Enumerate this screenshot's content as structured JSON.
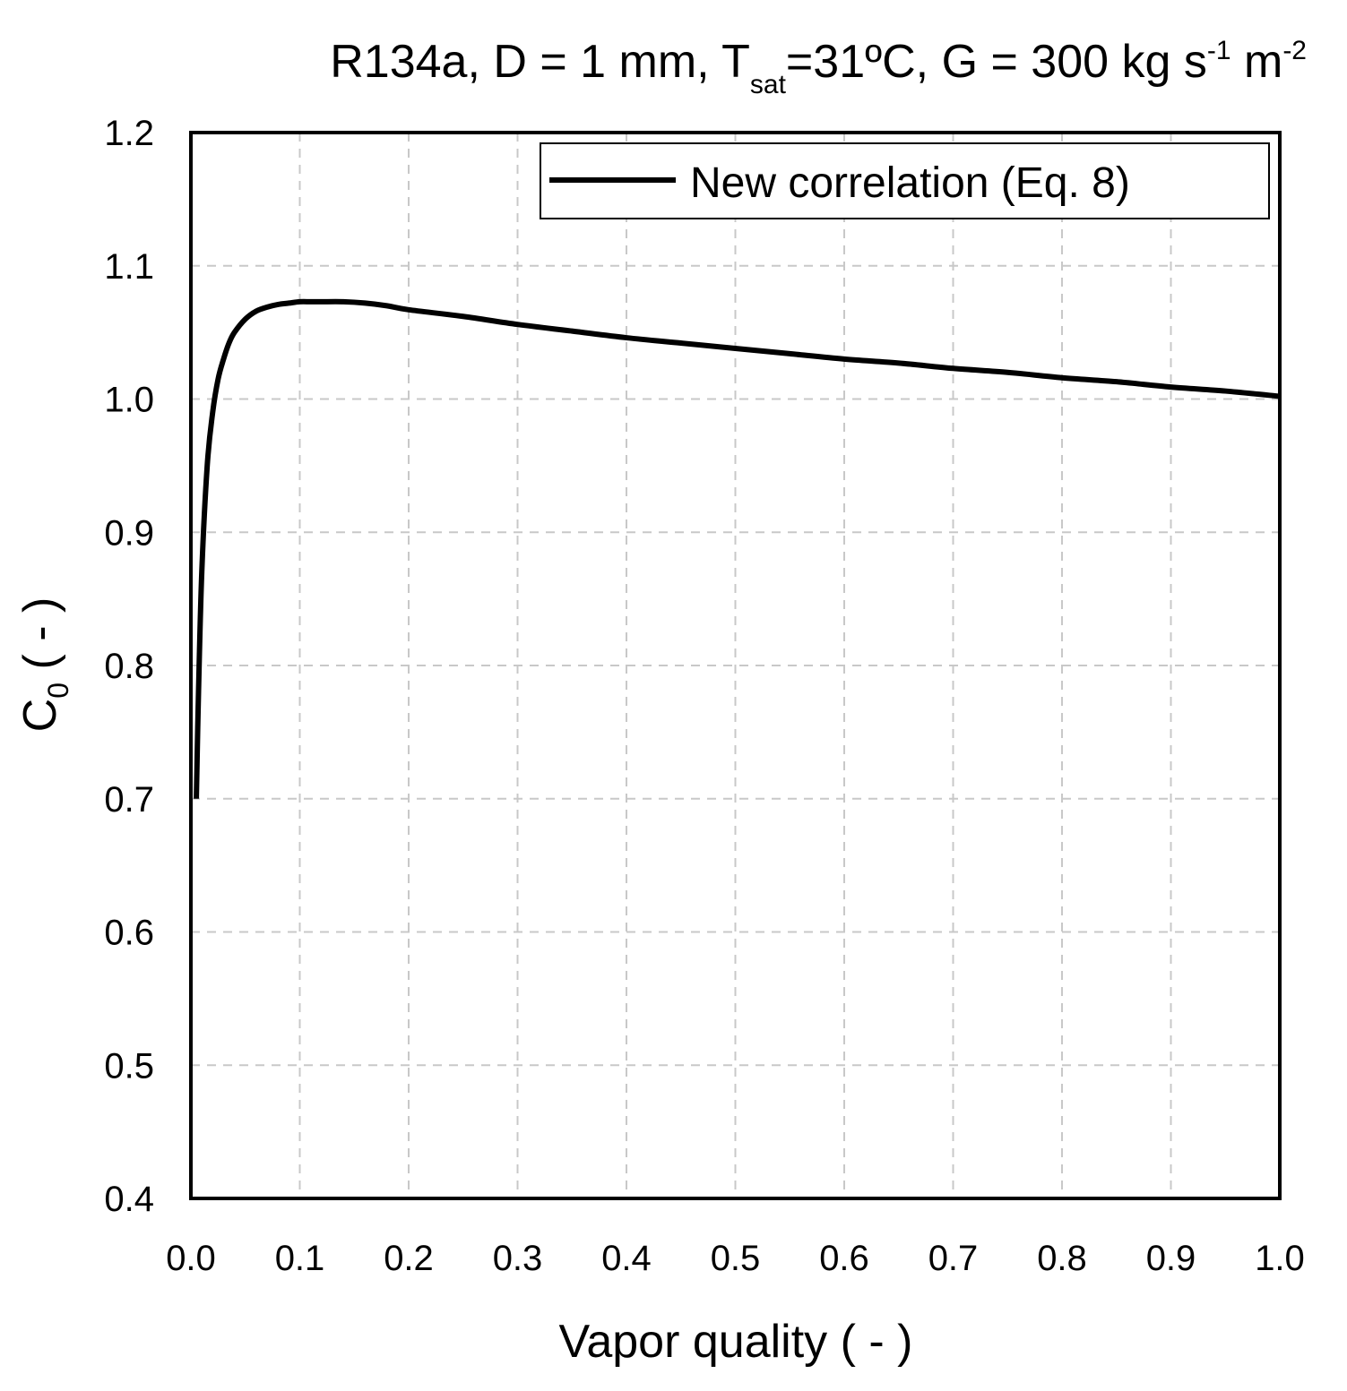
{
  "chart_data": {
    "type": "line",
    "title": {
      "part1": "R134a, D = 1 mm, T",
      "sub1": "sat",
      "part2": "=31ºC, G = 300 kg s",
      "sup1": "-1",
      "part3": " m",
      "sup2": "-2"
    },
    "xlabel": "Vapor quality ( - )",
    "ylabel": {
      "main": "C",
      "sub": "0",
      "rest": " ( - )"
    },
    "xlim": [
      0,
      1
    ],
    "ylim": [
      0.4,
      1.2
    ],
    "xticks": [
      "0.0",
      "0.1",
      "0.2",
      "0.3",
      "0.4",
      "0.5",
      "0.6",
      "0.7",
      "0.8",
      "0.9",
      "1.0"
    ],
    "yticks": [
      "0.4",
      "0.5",
      "0.6",
      "0.7",
      "0.8",
      "0.9",
      "1.0",
      "1.1",
      "1.2"
    ],
    "grid": true,
    "legend_position": "top-right",
    "series": [
      {
        "name": "New correlation (Eq. 8)",
        "color": "#000000",
        "x": [
          0.005,
          0.007,
          0.01,
          0.015,
          0.02,
          0.025,
          0.03,
          0.035,
          0.04,
          0.05,
          0.06,
          0.07,
          0.08,
          0.09,
          0.1,
          0.11,
          0.12,
          0.14,
          0.16,
          0.18,
          0.2,
          0.25,
          0.3,
          0.35,
          0.4,
          0.45,
          0.5,
          0.55,
          0.6,
          0.65,
          0.7,
          0.75,
          0.8,
          0.85,
          0.9,
          0.95,
          1.0
        ],
        "y": [
          0.7,
          0.78,
          0.87,
          0.95,
          0.99,
          1.015,
          1.03,
          1.042,
          1.05,
          1.06,
          1.066,
          1.069,
          1.071,
          1.072,
          1.073,
          1.073,
          1.073,
          1.073,
          1.072,
          1.07,
          1.067,
          1.062,
          1.056,
          1.051,
          1.046,
          1.042,
          1.038,
          1.034,
          1.03,
          1.027,
          1.023,
          1.02,
          1.016,
          1.013,
          1.009,
          1.006,
          1.002
        ]
      }
    ]
  }
}
